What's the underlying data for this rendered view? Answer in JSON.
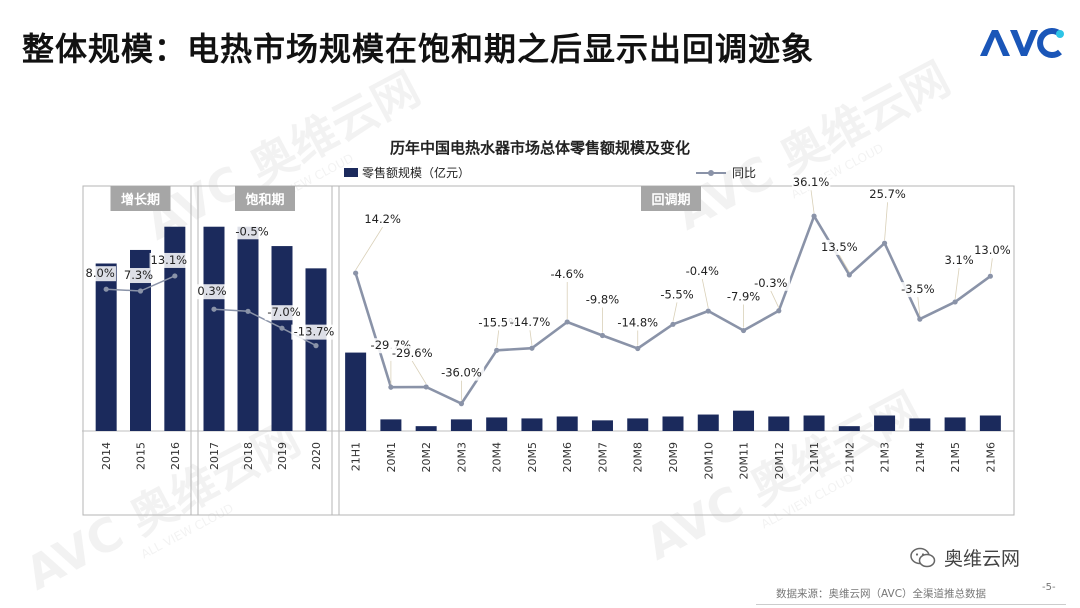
{
  "slide": {
    "title": "整体规模：电热市场规模在饱和期之后显示出回调迹象",
    "source": "数据来源：奥维云网（AVC）全渠道推总数据",
    "page": "-5-",
    "wechat_name": "奥维云网",
    "logo_text": "AVC",
    "watermark_text": "奥维云网",
    "watermark_sub": "ALL VIEW CLOUD"
  },
  "chart_data": {
    "type": "bar",
    "title": "历年中国电热水器市场总体零售额规模及变化",
    "categories": [
      "2014",
      "2015",
      "2016",
      "2017",
      "2018",
      "2019",
      "2020",
      "21H1",
      "20M1",
      "20M2",
      "20M3",
      "20M4",
      "20M5",
      "20M6",
      "20M7",
      "20M8",
      "20M9",
      "20M10",
      "20M11",
      "20M12",
      "21M1",
      "21M2",
      "21M3",
      "21M4",
      "21M5",
      "21M6"
    ],
    "series": [
      {
        "name": "零售额规模（亿元）",
        "type": "bar",
        "color": "#1b2a5c",
        "values": [
          173,
          187,
          211,
          211,
          211,
          191,
          168,
          81,
          12,
          5,
          12,
          14,
          13,
          15,
          11,
          13,
          15,
          17,
          21,
          15,
          16,
          5,
          16,
          13,
          14,
          16
        ]
      },
      {
        "name": "同比",
        "type": "line",
        "color": "#8a93a8",
        "values": [
          8.0,
          7.3,
          13.1,
          0.3,
          -0.5,
          -7.0,
          -13.7,
          14.2,
          -29.7,
          -29.6,
          -36.0,
          -15.5,
          -14.7,
          -4.6,
          -9.8,
          -14.8,
          -5.5,
          -0.4,
          -7.9,
          -0.3,
          36.1,
          13.5,
          25.7,
          -3.5,
          3.1,
          13.0
        ],
        "labels": [
          "8.0%",
          "7.3%",
          "13.1%",
          "0.3%",
          "-0.5%",
          "-7.0%",
          "-13.7%",
          "14.2%",
          "-29.7%",
          "-29.6%",
          "-36.0%",
          "-15.5%",
          "-14.7%",
          "-4.6%",
          "-9.8%",
          "-14.8%",
          "-5.5%",
          "-0.4%",
          "-7.9%",
          "-0.3%",
          "36.1%",
          "13.5%",
          "25.7%",
          "-3.5%",
          "3.1%",
          "13.0%"
        ]
      }
    ],
    "segments": [
      {
        "label": "增长期",
        "from": 0,
        "to": 2
      },
      {
        "label": "饱和期",
        "from": 3,
        "to": 6
      },
      {
        "label": "回调期",
        "from": 7,
        "to": 25
      }
    ],
    "bar_ylim": [
      0,
      220
    ],
    "line_ylim": [
      -50,
      40
    ],
    "legend_position": "top"
  }
}
